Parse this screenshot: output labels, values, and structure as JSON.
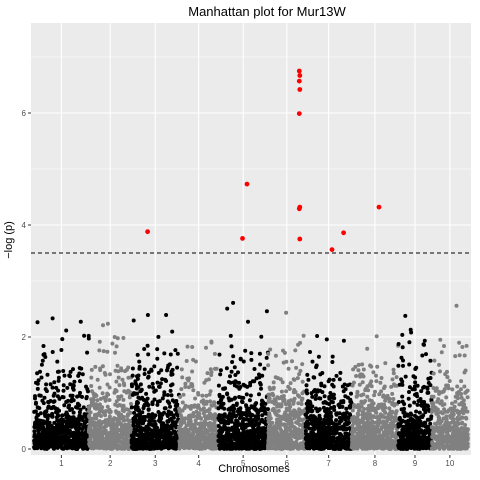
{
  "chart_data": {
    "type": "scatter",
    "title": "Manhattan plot for Mur13W",
    "xlabel": "Chromosomes",
    "ylabel": "−log (p)",
    "ylim": [
      0,
      7.5
    ],
    "yticks": [
      0,
      2,
      4,
      6
    ],
    "grid": true,
    "threshold": 3.5,
    "chromosomes": [
      {
        "label": "1",
        "start": 0.0,
        "end": 12.25
      },
      {
        "label": "2",
        "start": 12.25,
        "end": 21.8
      },
      {
        "label": "3",
        "start": 21.8,
        "end": 32.4
      },
      {
        "label": "4",
        "start": 32.4,
        "end": 41.2
      },
      {
        "label": "5",
        "start": 41.2,
        "end": 52.3
      },
      {
        "label": "6",
        "start": 52.3,
        "end": 60.7
      },
      {
        "label": "7",
        "start": 60.7,
        "end": 71.0
      },
      {
        "label": "8",
        "start": 71.0,
        "end": 81.4
      },
      {
        "label": "9",
        "start": 81.4,
        "end": 88.9
      },
      {
        "label": "10",
        "start": 88.9,
        "end": 97.0
      }
    ],
    "series": [
      {
        "color": "#ff0000",
        "points": [
          {
            "x": 25.4,
            "y": 3.88
          },
          {
            "x": 46.6,
            "y": 3.76
          },
          {
            "x": 47.6,
            "y": 4.73
          },
          {
            "x": 59.3,
            "y": 6.75
          },
          {
            "x": 59.4,
            "y": 6.67
          },
          {
            "x": 59.3,
            "y": 6.57
          },
          {
            "x": 59.4,
            "y": 6.42
          },
          {
            "x": 59.3,
            "y": 5.99
          },
          {
            "x": 59.4,
            "y": 4.32
          },
          {
            "x": 59.3,
            "y": 4.29
          },
          {
            "x": 59.4,
            "y": 3.75
          },
          {
            "x": 66.6,
            "y": 3.56
          },
          {
            "x": 69.2,
            "y": 3.86
          },
          {
            "x": 77.1,
            "y": 4.32
          }
        ]
      }
    ],
    "colors": {
      "odd_chromosome": "#000000",
      "even_chromosome": "#808080",
      "highlight": "#ff0000",
      "panel": "#ebebeb",
      "grid": "#ffffff",
      "threshold_line": "#000000"
    }
  }
}
